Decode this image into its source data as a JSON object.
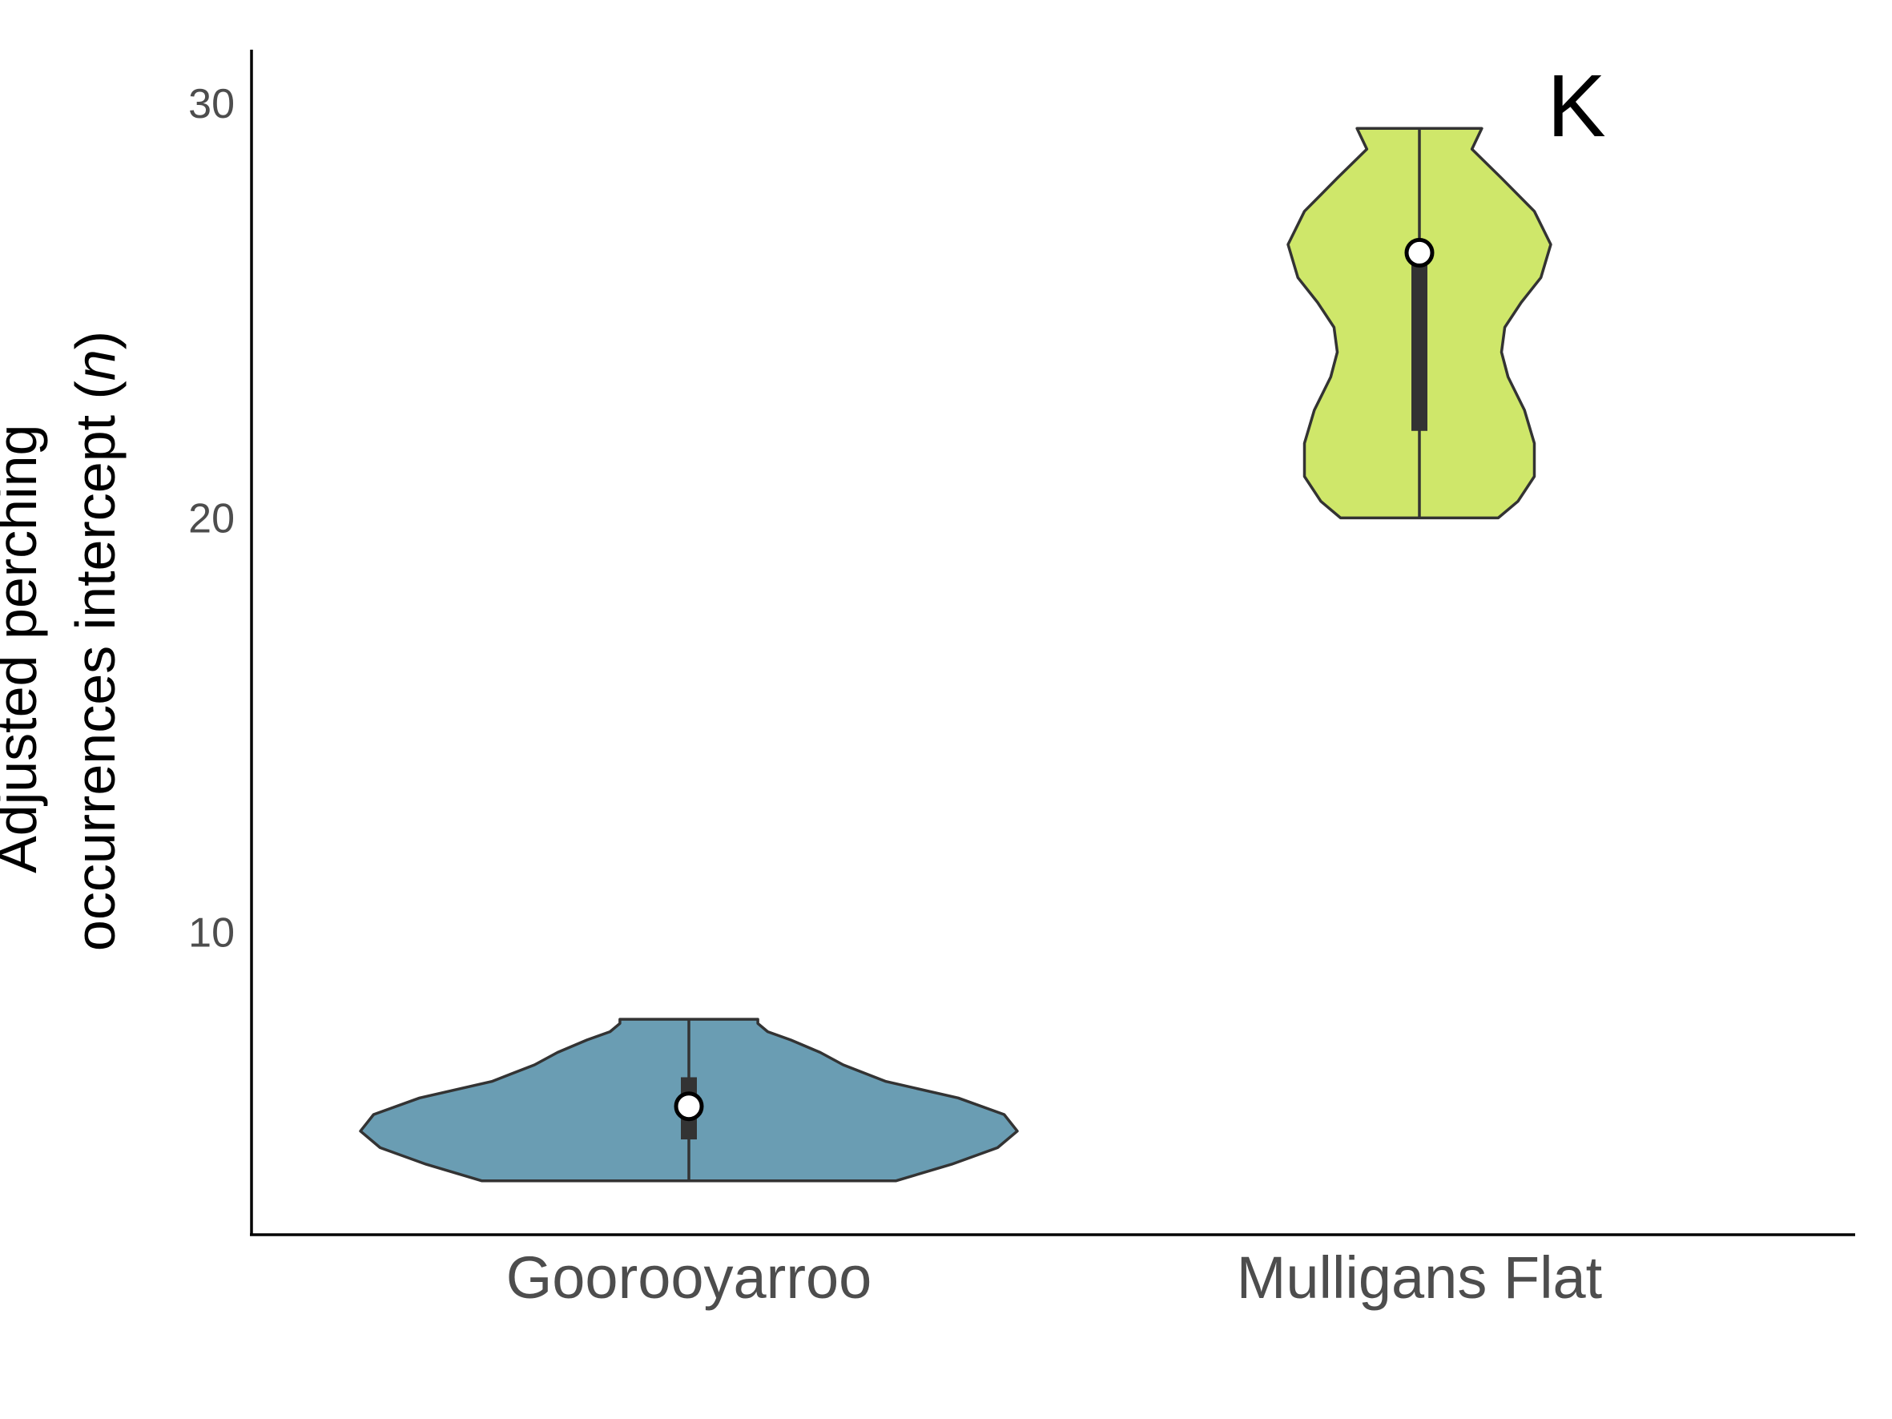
{
  "chart_data": {
    "type": "violin",
    "panel_label": "K",
    "ylabel": {
      "line1": "Adjusted perching",
      "line2_prefix": "occurrences intercept (",
      "line2_var": "n",
      "line2_suffix": ")"
    },
    "xlabel": "",
    "ylim": [
      2.7,
      31.3
    ],
    "yticks": [
      {
        "value": 10,
        "label": "10"
      },
      {
        "value": 20,
        "label": "20"
      },
      {
        "value": 30,
        "label": "30"
      }
    ],
    "grid": false,
    "legend": "none",
    "categories": [
      "Goorooyarroo",
      "Mulligans Flat"
    ],
    "groups": [
      {
        "category": "Goorooyarroo",
        "color": "#6a9db3",
        "min": 4.0,
        "max": 7.9,
        "mean": 5.8,
        "iqr": [
          5.0,
          6.5
        ],
        "density": [
          [
            4.0,
            0.63
          ],
          [
            4.4,
            0.8
          ],
          [
            4.8,
            0.94
          ],
          [
            5.2,
            1.0
          ],
          [
            5.6,
            0.96
          ],
          [
            6.0,
            0.82
          ],
          [
            6.4,
            0.6
          ],
          [
            6.8,
            0.47
          ],
          [
            7.1,
            0.4
          ],
          [
            7.4,
            0.31
          ],
          [
            7.6,
            0.24
          ],
          [
            7.8,
            0.21
          ],
          [
            7.9,
            0.21
          ]
        ]
      },
      {
        "category": "Mulligans Flat",
        "color": "#cfe76a",
        "min": 20.0,
        "max": 29.4,
        "mean": 26.4,
        "iqr": [
          22.1,
          26.7
        ],
        "density": [
          [
            20.0,
            0.24
          ],
          [
            20.4,
            0.3
          ],
          [
            21.0,
            0.35
          ],
          [
            21.8,
            0.35
          ],
          [
            22.6,
            0.32
          ],
          [
            23.4,
            0.27
          ],
          [
            24.0,
            0.25
          ],
          [
            24.6,
            0.26
          ],
          [
            25.2,
            0.31
          ],
          [
            25.8,
            0.37
          ],
          [
            26.6,
            0.4
          ],
          [
            27.4,
            0.35
          ],
          [
            28.2,
            0.25
          ],
          [
            28.9,
            0.16
          ],
          [
            29.4,
            0.19
          ]
        ]
      }
    ]
  }
}
